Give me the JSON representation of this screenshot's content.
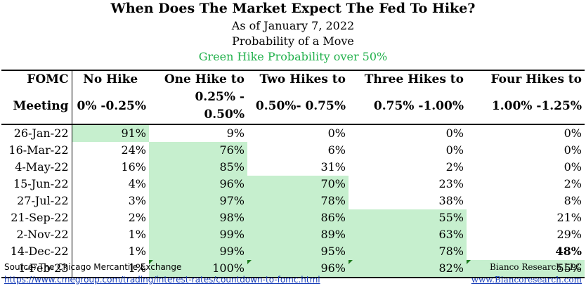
{
  "title": "When Does The Market Expect The Fed To Hike?",
  "subtitle1": "As of January 7, 2022",
  "subtitle2": "Probability of a Move",
  "subtitle3": "Green Hike Probability over 50%",
  "colors": {
    "highlight": "#c6efce",
    "green_text": "#22b14c",
    "link": "#1a3fb8"
  },
  "chart_data": {
    "type": "table",
    "columns": [
      {
        "top": "FOMC",
        "bottom": "Meeting"
      },
      {
        "top": "No Hike",
        "bottom": "0% -0.25%"
      },
      {
        "top": "One Hike to",
        "bottom": "0.25% - 0.50%"
      },
      {
        "top": "Two Hikes to",
        "bottom": "0.50%- 0.75%"
      },
      {
        "top": "Three Hikes to",
        "bottom": "0.75% -1.00%"
      },
      {
        "top": "Four Hikes to",
        "bottom": "1.00% -1.25%"
      }
    ],
    "rows": [
      {
        "meeting": "26-Jan-22",
        "values": [
          "91%",
          "9%",
          "0%",
          "0%",
          "0%"
        ]
      },
      {
        "meeting": "16-Mar-22",
        "values": [
          "24%",
          "76%",
          "6%",
          "0%",
          "0%"
        ]
      },
      {
        "meeting": "4-May-22",
        "values": [
          "16%",
          "85%",
          "31%",
          "2%",
          "0%"
        ]
      },
      {
        "meeting": "15-Jun-22",
        "values": [
          "4%",
          "96%",
          "70%",
          "23%",
          "2%"
        ]
      },
      {
        "meeting": "27-Jul-22",
        "values": [
          "3%",
          "97%",
          "78%",
          "38%",
          "8%"
        ]
      },
      {
        "meeting": "21-Sep-22",
        "values": [
          "2%",
          "98%",
          "86%",
          "55%",
          "21%"
        ]
      },
      {
        "meeting": "2-Nov-22",
        "values": [
          "1%",
          "99%",
          "89%",
          "63%",
          "29%"
        ]
      },
      {
        "meeting": "14-Dec-22",
        "values": [
          "1%",
          "99%",
          "95%",
          "78%",
          "48%"
        ]
      },
      {
        "meeting": "1-Feb-23",
        "values": [
          "1%",
          "100%",
          "96%",
          "82%",
          "55%"
        ]
      }
    ]
  },
  "footer": {
    "source": "Source: The Chicago Mercantile Exchange",
    "url": "https://www.cmegroup.com/trading/interest-rates/countdown-to-fomc.html",
    "firm": "Bianco Research LLC",
    "firm_url": "www.Biancoresearch.com"
  }
}
